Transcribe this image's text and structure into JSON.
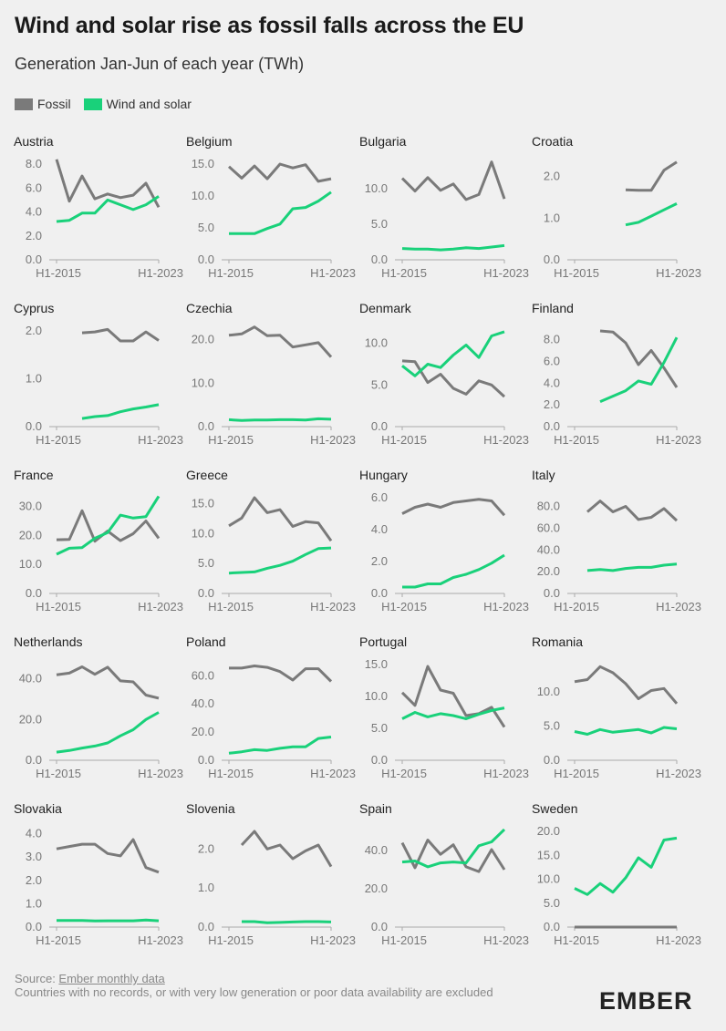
{
  "header": {
    "title": "Wind and solar rise as fossil falls across the EU",
    "subtitle": "Generation Jan-Jun of each year (TWh)"
  },
  "legend": [
    {
      "label": "Fossil",
      "color": "#7a7a7a"
    },
    {
      "label": "Wind and solar",
      "color": "#19d17a"
    }
  ],
  "footer": {
    "source_prefix": "Source: ",
    "source_link": "Ember monthly data",
    "note": "Countries with no records, or with very low generation or poor data availability are excluded",
    "logo": "EMBER"
  },
  "chart_data": [
    {
      "type": "line",
      "title": "Austria",
      "x_first_label": "H1-2015",
      "x_last_label": "H1-2023",
      "x": [
        2015,
        2016,
        2017,
        2018,
        2019,
        2020,
        2021,
        2022,
        2023
      ],
      "yticks": [
        "0.0",
        "2.0",
        "4.0",
        "6.0",
        "8.0"
      ],
      "ylim": [
        0,
        8
      ],
      "series": [
        {
          "name": "Fossil",
          "values": [
            8.4,
            4.9,
            7.0,
            5.1,
            5.5,
            5.2,
            5.4,
            6.4,
            4.4
          ]
        },
        {
          "name": "Wind and solar",
          "values": [
            3.2,
            3.3,
            3.9,
            3.9,
            5.0,
            4.6,
            4.2,
            4.6,
            5.3
          ]
        }
      ]
    },
    {
      "type": "line",
      "title": "Belgium",
      "x_first_label": "H1-2015",
      "x_last_label": "H1-2023",
      "x": [
        2015,
        2016,
        2017,
        2018,
        2019,
        2020,
        2021,
        2022,
        2023
      ],
      "yticks": [
        "0.0",
        "5.0",
        "10.0",
        "15.0"
      ],
      "ylim": [
        0,
        15
      ],
      "series": [
        {
          "name": "Fossil",
          "values": [
            14.6,
            12.8,
            14.7,
            12.7,
            15.0,
            14.4,
            14.9,
            12.3,
            12.7
          ]
        },
        {
          "name": "Wind and solar",
          "values": [
            4.1,
            4.1,
            4.1,
            4.9,
            5.6,
            8.0,
            8.2,
            9.2,
            10.6
          ]
        }
      ]
    },
    {
      "type": "line",
      "title": "Bulgaria",
      "x_first_label": "H1-2015",
      "x_last_label": "H1-2023",
      "x": [
        2015,
        2016,
        2017,
        2018,
        2019,
        2020,
        2021,
        2022,
        2023
      ],
      "yticks": [
        "0.0",
        "5.0",
        "10.0"
      ],
      "ylim": [
        0,
        13.5
      ],
      "series": [
        {
          "name": "Fossil",
          "values": [
            11.5,
            9.7,
            11.6,
            9.8,
            10.7,
            8.5,
            9.2,
            13.8,
            8.6
          ]
        },
        {
          "name": "Wind and solar",
          "values": [
            1.6,
            1.5,
            1.5,
            1.4,
            1.5,
            1.7,
            1.6,
            1.8,
            2.0
          ]
        }
      ]
    },
    {
      "type": "line",
      "title": "Croatia",
      "x_first_label": "H1-2015",
      "x_last_label": "H1-2023",
      "x": [
        2015,
        2016,
        2017,
        2018,
        2019,
        2020,
        2021,
        2022,
        2023
      ],
      "yticks": [
        "0.0",
        "1.0",
        "2.0"
      ],
      "ylim": [
        0,
        2.3
      ],
      "series": [
        {
          "name": "Fossil",
          "values": [
            null,
            null,
            null,
            null,
            1.68,
            1.67,
            1.67,
            2.15,
            2.35
          ]
        },
        {
          "name": "Wind and solar",
          "values": [
            null,
            null,
            null,
            null,
            0.84,
            0.9,
            1.05,
            1.2,
            1.35
          ]
        }
      ]
    },
    {
      "type": "line",
      "title": "Cyprus",
      "x_first_label": "H1-2015",
      "x_last_label": "H1-2023",
      "x": [
        2015,
        2016,
        2017,
        2018,
        2019,
        2020,
        2021,
        2022,
        2023
      ],
      "yticks": [
        "0.0",
        "1.0",
        "2.0"
      ],
      "ylim": [
        0,
        2.0
      ],
      "series": [
        {
          "name": "Fossil",
          "values": [
            null,
            null,
            1.96,
            1.98,
            2.03,
            1.79,
            1.79,
            1.98,
            1.8
          ]
        },
        {
          "name": "Wind and solar",
          "values": [
            null,
            null,
            0.17,
            0.21,
            0.23,
            0.31,
            0.37,
            0.41,
            0.46
          ]
        }
      ]
    },
    {
      "type": "line",
      "title": "Czechia",
      "x_first_label": "H1-2015",
      "x_last_label": "H1-2023",
      "x": [
        2015,
        2016,
        2017,
        2018,
        2019,
        2020,
        2021,
        2022,
        2023
      ],
      "yticks": [
        "0.0",
        "10.0",
        "20.0"
      ],
      "ylim": [
        0,
        22
      ],
      "series": [
        {
          "name": "Fossil",
          "values": [
            21.0,
            21.3,
            22.9,
            20.9,
            21.0,
            18.3,
            18.8,
            19.3,
            16.0
          ]
        },
        {
          "name": "Wind and solar",
          "values": [
            1.6,
            1.4,
            1.5,
            1.5,
            1.6,
            1.6,
            1.5,
            1.8,
            1.7
          ]
        }
      ]
    },
    {
      "type": "line",
      "title": "Denmark",
      "x_first_label": "H1-2015",
      "x_last_label": "H1-2023",
      "x": [
        2015,
        2016,
        2017,
        2018,
        2019,
        2020,
        2021,
        2022,
        2023
      ],
      "yticks": [
        "0.0",
        "5.0",
        "10.0"
      ],
      "ylim": [
        0,
        11.5
      ],
      "series": [
        {
          "name": "Fossil",
          "values": [
            7.9,
            7.8,
            5.3,
            6.3,
            4.6,
            3.9,
            5.5,
            5.0,
            3.6
          ]
        },
        {
          "name": "Wind and solar",
          "values": [
            7.3,
            6.1,
            7.5,
            7.1,
            8.6,
            9.8,
            8.3,
            10.9,
            11.4
          ]
        }
      ]
    },
    {
      "type": "line",
      "title": "Finland",
      "x_first_label": "H1-2015",
      "x_last_label": "H1-2023",
      "x": [
        2015,
        2016,
        2017,
        2018,
        2019,
        2020,
        2021,
        2022,
        2023
      ],
      "yticks": [
        "0.0",
        "2.0",
        "4.0",
        "6.0",
        "8.0"
      ],
      "ylim": [
        0,
        8.8
      ],
      "series": [
        {
          "name": "Fossil",
          "values": [
            null,
            null,
            8.8,
            8.7,
            7.7,
            5.7,
            7.0,
            5.4,
            3.6
          ]
        },
        {
          "name": "Wind and solar",
          "values": [
            null,
            null,
            2.3,
            2.8,
            3.3,
            4.2,
            3.9,
            5.9,
            8.2
          ]
        }
      ]
    },
    {
      "type": "line",
      "title": "France",
      "x_first_label": "H1-2015",
      "x_last_label": "H1-2023",
      "x": [
        2015,
        2016,
        2017,
        2018,
        2019,
        2020,
        2021,
        2022,
        2023
      ],
      "yticks": [
        "0.0",
        "10.0",
        "20.0",
        "30.0"
      ],
      "ylim": [
        0,
        33
      ],
      "series": [
        {
          "name": "Fossil",
          "values": [
            18.5,
            18.6,
            28.5,
            18.0,
            21.5,
            18.2,
            20.6,
            25.0,
            19.0
          ]
        },
        {
          "name": "Wind and solar",
          "values": [
            13.5,
            15.6,
            15.8,
            19.0,
            21.0,
            27.0,
            26.0,
            26.5,
            33.5
          ]
        }
      ]
    },
    {
      "type": "line",
      "title": "Greece",
      "x_first_label": "H1-2015",
      "x_last_label": "H1-2023",
      "x": [
        2015,
        2016,
        2017,
        2018,
        2019,
        2020,
        2021,
        2022,
        2023
      ],
      "yticks": [
        "0.0",
        "5.0",
        "10.0",
        "15.0"
      ],
      "ylim": [
        0,
        16
      ],
      "series": [
        {
          "name": "Fossil",
          "values": [
            11.3,
            12.6,
            16.0,
            13.5,
            14.0,
            11.2,
            12.0,
            11.8,
            8.8
          ]
        },
        {
          "name": "Wind and solar",
          "values": [
            3.4,
            3.5,
            3.6,
            4.2,
            4.7,
            5.4,
            6.5,
            7.5,
            7.6
          ]
        }
      ]
    },
    {
      "type": "line",
      "title": "Hungary",
      "x_first_label": "H1-2015",
      "x_last_label": "H1-2023",
      "x": [
        2015,
        2016,
        2017,
        2018,
        2019,
        2020,
        2021,
        2022,
        2023
      ],
      "yticks": [
        "0.0",
        "2.0",
        "4.0",
        "6.0"
      ],
      "ylim": [
        0,
        6
      ],
      "series": [
        {
          "name": "Fossil",
          "values": [
            5.0,
            5.4,
            5.6,
            5.4,
            5.7,
            5.8,
            5.9,
            5.8,
            4.9
          ]
        },
        {
          "name": "Wind and solar",
          "values": [
            0.4,
            0.4,
            0.6,
            0.6,
            1.0,
            1.2,
            1.5,
            1.9,
            2.4
          ]
        }
      ]
    },
    {
      "type": "line",
      "title": "Italy",
      "x_first_label": "H1-2015",
      "x_last_label": "H1-2023",
      "x": [
        2015,
        2016,
        2017,
        2018,
        2019,
        2020,
        2021,
        2022,
        2023
      ],
      "yticks": [
        "0.0",
        "20.0",
        "40.0",
        "60.0",
        "80.0"
      ],
      "ylim": [
        0,
        88
      ],
      "series": [
        {
          "name": "Fossil",
          "values": [
            null,
            75,
            85,
            75,
            80,
            68,
            70,
            78,
            67
          ]
        },
        {
          "name": "Wind and solar",
          "values": [
            null,
            21,
            22,
            21,
            23,
            24,
            24,
            26,
            27
          ]
        }
      ]
    },
    {
      "type": "line",
      "title": "Netherlands",
      "x_first_label": "H1-2015",
      "x_last_label": "H1-2023",
      "x": [
        2015,
        2016,
        2017,
        2018,
        2019,
        2020,
        2021,
        2022,
        2023
      ],
      "yticks": [
        "0.0",
        "20.0",
        "40.0"
      ],
      "ylim": [
        0,
        47
      ],
      "series": [
        {
          "name": "Fossil",
          "values": [
            42.0,
            42.8,
            45.9,
            42.2,
            45.7,
            39.0,
            38.5,
            32.0,
            30.5
          ]
        },
        {
          "name": "Wind and solar",
          "values": [
            4.0,
            4.8,
            6.0,
            7.0,
            8.5,
            12.0,
            15.0,
            20.0,
            23.5
          ]
        }
      ]
    },
    {
      "type": "line",
      "title": "Poland",
      "x_first_label": "H1-2015",
      "x_last_label": "H1-2023",
      "x": [
        2015,
        2016,
        2017,
        2018,
        2019,
        2020,
        2021,
        2022,
        2023
      ],
      "yticks": [
        "0.0",
        "20.0",
        "40.0",
        "60.0"
      ],
      "ylim": [
        0,
        68
      ],
      "series": [
        {
          "name": "Fossil",
          "values": [
            65.5,
            65.5,
            67.0,
            66.0,
            63.0,
            57.0,
            65.0,
            65.0,
            56.0
          ]
        },
        {
          "name": "Wind and solar",
          "values": [
            5.0,
            6.0,
            7.5,
            7.0,
            8.5,
            9.5,
            9.5,
            15.5,
            16.5
          ]
        }
      ]
    },
    {
      "type": "line",
      "title": "Portugal",
      "x_first_label": "H1-2015",
      "x_last_label": "H1-2023",
      "x": [
        2015,
        2016,
        2017,
        2018,
        2019,
        2020,
        2021,
        2022,
        2023
      ],
      "yticks": [
        "0.0",
        "5.0",
        "10.0",
        "15.0"
      ],
      "ylim": [
        0,
        15
      ],
      "series": [
        {
          "name": "Fossil",
          "values": [
            10.6,
            8.6,
            14.7,
            11.0,
            10.5,
            7.0,
            7.3,
            8.3,
            5.2
          ]
        },
        {
          "name": "Wind and solar",
          "values": [
            6.5,
            7.5,
            6.8,
            7.3,
            7.0,
            6.5,
            7.2,
            7.8,
            8.2
          ]
        }
      ]
    },
    {
      "type": "line",
      "title": "Romania",
      "x_first_label": "H1-2015",
      "x_last_label": "H1-2023",
      "x": [
        2015,
        2016,
        2017,
        2018,
        2019,
        2020,
        2021,
        2022,
        2023
      ],
      "yticks": [
        "0.0",
        "5.0",
        "10.0"
      ],
      "ylim": [
        0,
        14
      ],
      "series": [
        {
          "name": "Fossil",
          "values": [
            11.5,
            11.8,
            13.7,
            12.8,
            11.2,
            9.0,
            10.2,
            10.5,
            8.3
          ]
        },
        {
          "name": "Wind and solar",
          "values": [
            4.2,
            3.8,
            4.5,
            4.1,
            4.3,
            4.5,
            4.0,
            4.8,
            4.6
          ]
        }
      ]
    },
    {
      "type": "line",
      "title": "Slovakia",
      "x_first_label": "H1-2015",
      "x_last_label": "H1-2023",
      "x": [
        2015,
        2016,
        2017,
        2018,
        2019,
        2020,
        2021,
        2022,
        2023
      ],
      "yticks": [
        "0.0",
        "1.0",
        "2.0",
        "3.0",
        "4.0"
      ],
      "ylim": [
        0,
        4.1
      ],
      "series": [
        {
          "name": "Fossil",
          "values": [
            3.35,
            3.45,
            3.55,
            3.55,
            3.15,
            3.05,
            3.75,
            2.55,
            2.35
          ]
        },
        {
          "name": "Wind and solar",
          "values": [
            0.28,
            0.28,
            0.28,
            0.26,
            0.27,
            0.27,
            0.27,
            0.3,
            0.27
          ]
        }
      ]
    },
    {
      "type": "line",
      "title": "Slovenia",
      "x_first_label": "H1-2015",
      "x_last_label": "H1-2023",
      "x": [
        2015,
        2016,
        2017,
        2018,
        2019,
        2020,
        2021,
        2022,
        2023
      ],
      "yticks": [
        "0.0",
        "1.0",
        "2.0"
      ],
      "ylim": [
        0,
        2.45
      ],
      "series": [
        {
          "name": "Fossil",
          "values": [
            null,
            2.1,
            2.45,
            2.0,
            2.1,
            1.75,
            1.95,
            2.1,
            1.55
          ]
        },
        {
          "name": "Wind and solar",
          "values": [
            null,
            0.14,
            0.14,
            0.11,
            0.12,
            0.13,
            0.14,
            0.14,
            0.13
          ]
        }
      ]
    },
    {
      "type": "line",
      "title": "Spain",
      "x_first_label": "H1-2015",
      "x_last_label": "H1-2023",
      "x": [
        2015,
        2016,
        2017,
        2018,
        2019,
        2020,
        2021,
        2022,
        2023
      ],
      "yticks": [
        "0.0",
        "20.0",
        "40.0"
      ],
      "ylim": [
        0,
        50
      ],
      "series": [
        {
          "name": "Fossil",
          "values": [
            44.0,
            31.0,
            45.5,
            38.0,
            43.0,
            31.5,
            29.0,
            40.5,
            30.0
          ]
        },
        {
          "name": "Wind and solar",
          "values": [
            34.0,
            34.5,
            31.5,
            33.5,
            34.0,
            33.5,
            42.5,
            44.5,
            51.0
          ]
        }
      ]
    },
    {
      "type": "line",
      "title": "Sweden",
      "x_first_label": "H1-2015",
      "x_last_label": "H1-2023",
      "x": [
        2015,
        2016,
        2017,
        2018,
        2019,
        2020,
        2021,
        2022,
        2023
      ],
      "yticks": [
        "0.0",
        "5.0",
        "10.0",
        "15.0",
        "20.0"
      ],
      "ylim": [
        0,
        20
      ],
      "series": [
        {
          "name": "Fossil",
          "values": [
            0,
            0,
            0,
            0,
            0,
            0,
            0,
            0,
            0
          ]
        },
        {
          "name": "Wind and solar",
          "values": [
            8.1,
            6.8,
            9.1,
            7.3,
            10.3,
            14.5,
            12.5,
            18.2,
            18.6
          ]
        }
      ]
    }
  ]
}
